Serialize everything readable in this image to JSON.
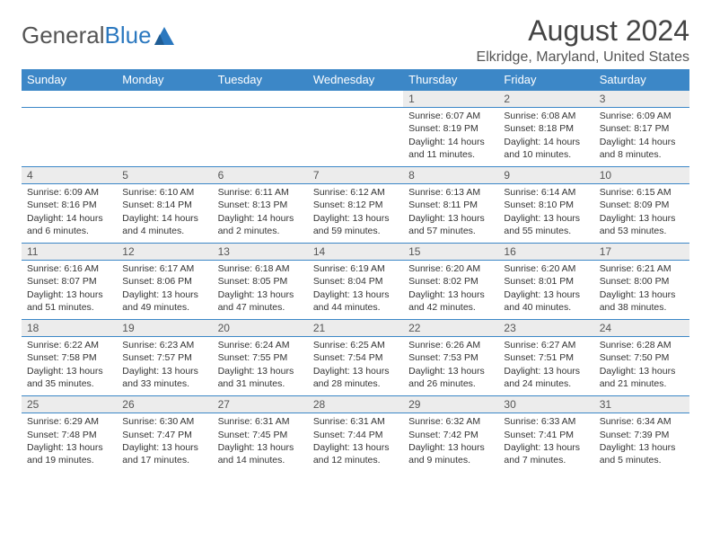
{
  "logo": {
    "part1": "General",
    "part2": "Blue"
  },
  "title": "August 2024",
  "location": "Elkridge, Maryland, United States",
  "colors": {
    "header_bg": "#3c87c7",
    "header_text": "#ffffff",
    "daynum_bg": "#ececec",
    "border": "#3c87c7",
    "text": "#333333",
    "logo_blue": "#2b78bf"
  },
  "daynames": [
    "Sunday",
    "Monday",
    "Tuesday",
    "Wednesday",
    "Thursday",
    "Friday",
    "Saturday"
  ],
  "weeks": [
    [
      null,
      null,
      null,
      null,
      {
        "n": "1",
        "sr": "6:07 AM",
        "ss": "8:19 PM",
        "dl": "14 hours and 11 minutes."
      },
      {
        "n": "2",
        "sr": "6:08 AM",
        "ss": "8:18 PM",
        "dl": "14 hours and 10 minutes."
      },
      {
        "n": "3",
        "sr": "6:09 AM",
        "ss": "8:17 PM",
        "dl": "14 hours and 8 minutes."
      }
    ],
    [
      {
        "n": "4",
        "sr": "6:09 AM",
        "ss": "8:16 PM",
        "dl": "14 hours and 6 minutes."
      },
      {
        "n": "5",
        "sr": "6:10 AM",
        "ss": "8:14 PM",
        "dl": "14 hours and 4 minutes."
      },
      {
        "n": "6",
        "sr": "6:11 AM",
        "ss": "8:13 PM",
        "dl": "14 hours and 2 minutes."
      },
      {
        "n": "7",
        "sr": "6:12 AM",
        "ss": "8:12 PM",
        "dl": "13 hours and 59 minutes."
      },
      {
        "n": "8",
        "sr": "6:13 AM",
        "ss": "8:11 PM",
        "dl": "13 hours and 57 minutes."
      },
      {
        "n": "9",
        "sr": "6:14 AM",
        "ss": "8:10 PM",
        "dl": "13 hours and 55 minutes."
      },
      {
        "n": "10",
        "sr": "6:15 AM",
        "ss": "8:09 PM",
        "dl": "13 hours and 53 minutes."
      }
    ],
    [
      {
        "n": "11",
        "sr": "6:16 AM",
        "ss": "8:07 PM",
        "dl": "13 hours and 51 minutes."
      },
      {
        "n": "12",
        "sr": "6:17 AM",
        "ss": "8:06 PM",
        "dl": "13 hours and 49 minutes."
      },
      {
        "n": "13",
        "sr": "6:18 AM",
        "ss": "8:05 PM",
        "dl": "13 hours and 47 minutes."
      },
      {
        "n": "14",
        "sr": "6:19 AM",
        "ss": "8:04 PM",
        "dl": "13 hours and 44 minutes."
      },
      {
        "n": "15",
        "sr": "6:20 AM",
        "ss": "8:02 PM",
        "dl": "13 hours and 42 minutes."
      },
      {
        "n": "16",
        "sr": "6:20 AM",
        "ss": "8:01 PM",
        "dl": "13 hours and 40 minutes."
      },
      {
        "n": "17",
        "sr": "6:21 AM",
        "ss": "8:00 PM",
        "dl": "13 hours and 38 minutes."
      }
    ],
    [
      {
        "n": "18",
        "sr": "6:22 AM",
        "ss": "7:58 PM",
        "dl": "13 hours and 35 minutes."
      },
      {
        "n": "19",
        "sr": "6:23 AM",
        "ss": "7:57 PM",
        "dl": "13 hours and 33 minutes."
      },
      {
        "n": "20",
        "sr": "6:24 AM",
        "ss": "7:55 PM",
        "dl": "13 hours and 31 minutes."
      },
      {
        "n": "21",
        "sr": "6:25 AM",
        "ss": "7:54 PM",
        "dl": "13 hours and 28 minutes."
      },
      {
        "n": "22",
        "sr": "6:26 AM",
        "ss": "7:53 PM",
        "dl": "13 hours and 26 minutes."
      },
      {
        "n": "23",
        "sr": "6:27 AM",
        "ss": "7:51 PM",
        "dl": "13 hours and 24 minutes."
      },
      {
        "n": "24",
        "sr": "6:28 AM",
        "ss": "7:50 PM",
        "dl": "13 hours and 21 minutes."
      }
    ],
    [
      {
        "n": "25",
        "sr": "6:29 AM",
        "ss": "7:48 PM",
        "dl": "13 hours and 19 minutes."
      },
      {
        "n": "26",
        "sr": "6:30 AM",
        "ss": "7:47 PM",
        "dl": "13 hours and 17 minutes."
      },
      {
        "n": "27",
        "sr": "6:31 AM",
        "ss": "7:45 PM",
        "dl": "13 hours and 14 minutes."
      },
      {
        "n": "28",
        "sr": "6:31 AM",
        "ss": "7:44 PM",
        "dl": "13 hours and 12 minutes."
      },
      {
        "n": "29",
        "sr": "6:32 AM",
        "ss": "7:42 PM",
        "dl": "13 hours and 9 minutes."
      },
      {
        "n": "30",
        "sr": "6:33 AM",
        "ss": "7:41 PM",
        "dl": "13 hours and 7 minutes."
      },
      {
        "n": "31",
        "sr": "6:34 AM",
        "ss": "7:39 PM",
        "dl": "13 hours and 5 minutes."
      }
    ]
  ],
  "labels": {
    "sunrise": "Sunrise:",
    "sunset": "Sunset:",
    "daylight": "Daylight:"
  }
}
